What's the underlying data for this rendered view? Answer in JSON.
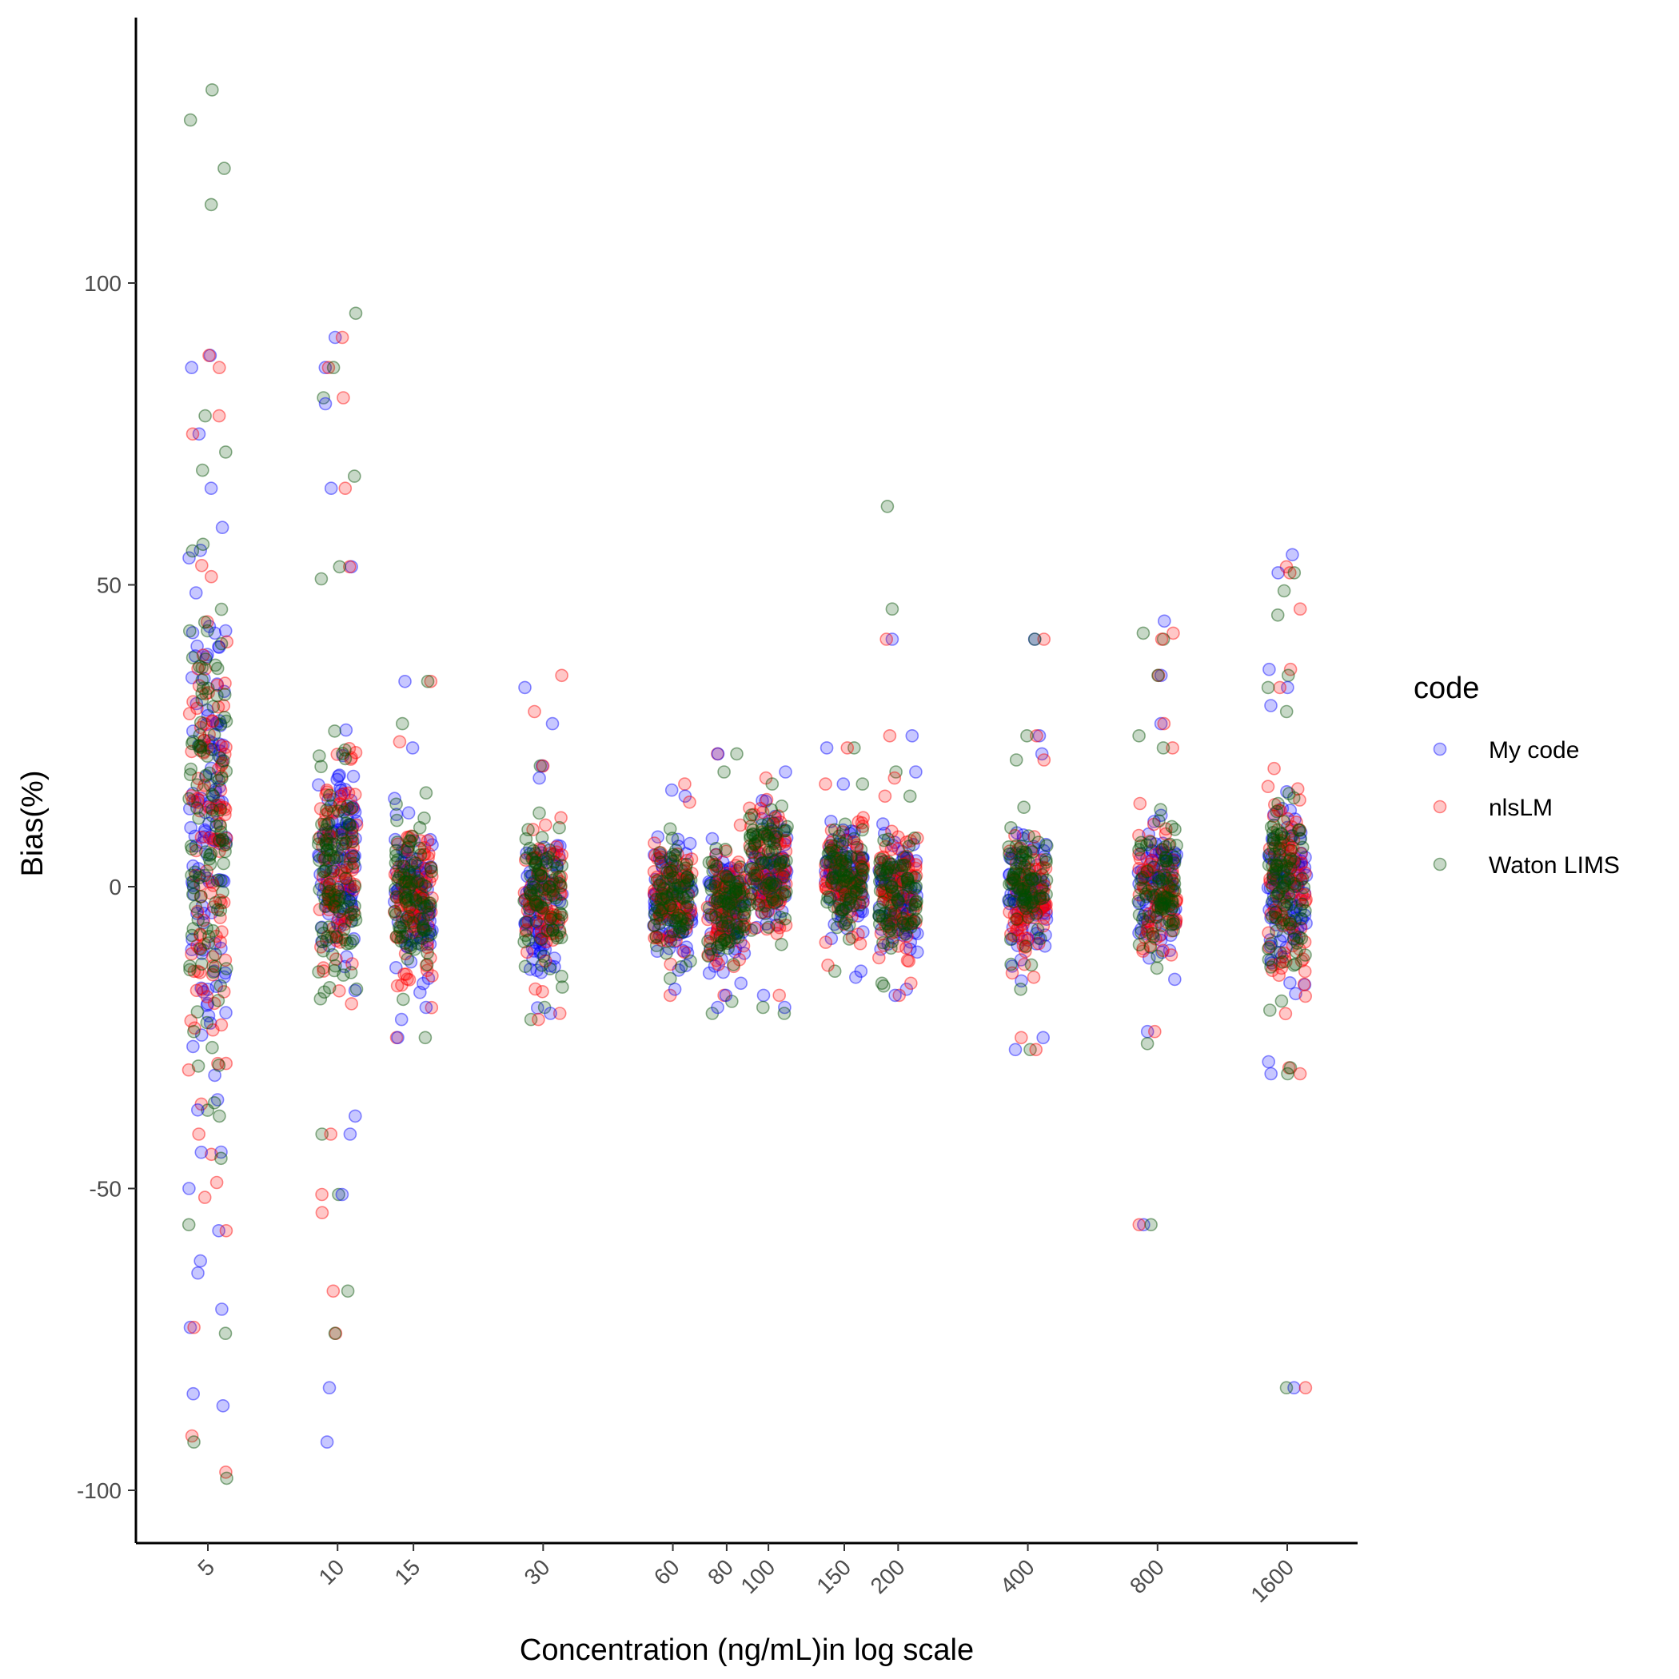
{
  "chart_data": {
    "type": "scatter",
    "xlabel": "Concentration (ng/mL)in log scale",
    "ylabel": "Bias(%)",
    "x_scale": "log",
    "x_ticks": [
      5,
      10,
      15,
      30,
      60,
      80,
      100,
      150,
      200,
      400,
      800,
      1600
    ],
    "x_tick_labels": [
      "5",
      "10",
      "15",
      "30",
      "60",
      "80",
      "100",
      "150",
      "200",
      "400",
      "800",
      "1600"
    ],
    "y_ticks": [
      -100,
      -50,
      0,
      50,
      100
    ],
    "y_tick_labels": [
      "-100",
      "-50",
      "0",
      "50",
      "100"
    ],
    "ylim": [
      -109,
      144
    ],
    "grid": false,
    "legend": {
      "title": "code",
      "position": "right"
    },
    "series": [
      {
        "name": "My code",
        "color": "#0000ff"
      },
      {
        "name": "nlsLM",
        "color": "#ff0000"
      },
      {
        "name": "Waton LIMS",
        "color": "#004d00"
      }
    ],
    "groups": [
      {
        "x": 5,
        "core_mean": 10,
        "core_sd": 30,
        "n": 110,
        "outliers": [
          {
            "s": 2,
            "y": 132
          },
          {
            "s": 2,
            "y": 127
          },
          {
            "s": 2,
            "y": 119
          },
          {
            "s": 2,
            "y": 113
          },
          {
            "s": 0,
            "y": 88
          },
          {
            "s": 1,
            "y": 88
          },
          {
            "s": 0,
            "y": 86
          },
          {
            "s": 1,
            "y": 86
          },
          {
            "s": 2,
            "y": 78
          },
          {
            "s": 1,
            "y": 78
          },
          {
            "s": 0,
            "y": 75
          },
          {
            "s": 1,
            "y": 75
          },
          {
            "s": 2,
            "y": 72
          },
          {
            "s": 0,
            "y": 66
          },
          {
            "s": 2,
            "y": 69
          },
          {
            "s": 0,
            "y": -57
          },
          {
            "s": 1,
            "y": -57
          },
          {
            "s": 2,
            "y": -56
          },
          {
            "s": 0,
            "y": -62
          },
          {
            "s": 0,
            "y": -64
          },
          {
            "s": 0,
            "y": -70
          },
          {
            "s": 0,
            "y": -73
          },
          {
            "s": 2,
            "y": -74
          },
          {
            "s": 1,
            "y": -73
          },
          {
            "s": 0,
            "y": -84
          },
          {
            "s": 0,
            "y": -86
          },
          {
            "s": 1,
            "y": -91
          },
          {
            "s": 2,
            "y": -92
          },
          {
            "s": 1,
            "y": -97
          },
          {
            "s": 2,
            "y": -98
          },
          {
            "s": 0,
            "y": -50
          },
          {
            "s": 1,
            "y": -49
          },
          {
            "s": 2,
            "y": -45
          },
          {
            "s": 0,
            "y": -44
          },
          {
            "s": 1,
            "y": -41
          },
          {
            "s": 2,
            "y": -38
          },
          {
            "s": 0,
            "y": -37
          }
        ]
      },
      {
        "x": 10,
        "core_mean": 3,
        "core_sd": 13,
        "n": 100,
        "outliers": [
          {
            "s": 2,
            "y": 95
          },
          {
            "s": 0,
            "y": 91
          },
          {
            "s": 1,
            "y": 91
          },
          {
            "s": 0,
            "y": 86
          },
          {
            "s": 1,
            "y": 86
          },
          {
            "s": 2,
            "y": 86
          },
          {
            "s": 2,
            "y": 81
          },
          {
            "s": 1,
            "y": 81
          },
          {
            "s": 0,
            "y": 80
          },
          {
            "s": 2,
            "y": 68
          },
          {
            "s": 1,
            "y": 66
          },
          {
            "s": 0,
            "y": 66
          },
          {
            "s": 0,
            "y": 53
          },
          {
            "s": 1,
            "y": 53
          },
          {
            "s": 2,
            "y": 53
          },
          {
            "s": 2,
            "y": 51
          },
          {
            "s": 1,
            "y": -51
          },
          {
            "s": 2,
            "y": -51
          },
          {
            "s": 0,
            "y": -51
          },
          {
            "s": 1,
            "y": -54
          },
          {
            "s": 1,
            "y": -67
          },
          {
            "s": 2,
            "y": -67
          },
          {
            "s": 1,
            "y": -74
          },
          {
            "s": 2,
            "y": -74
          },
          {
            "s": 0,
            "y": -83
          },
          {
            "s": 0,
            "y": -92
          },
          {
            "s": 0,
            "y": -41
          },
          {
            "s": 2,
            "y": -41
          },
          {
            "s": 1,
            "y": -41
          },
          {
            "s": 0,
            "y": -38
          }
        ]
      },
      {
        "x": 15,
        "core_mean": -2,
        "core_sd": 9,
        "n": 90,
        "outliers": [
          {
            "s": 1,
            "y": 34
          },
          {
            "s": 2,
            "y": 34
          },
          {
            "s": 0,
            "y": 34
          },
          {
            "s": 2,
            "y": 27
          },
          {
            "s": 1,
            "y": 24
          },
          {
            "s": 0,
            "y": 23
          },
          {
            "s": 0,
            "y": -20
          },
          {
            "s": 0,
            "y": -22
          },
          {
            "s": 1,
            "y": -25
          },
          {
            "s": 0,
            "y": -25
          },
          {
            "s": 2,
            "y": -25
          }
        ]
      },
      {
        "x": 30,
        "core_mean": -2,
        "core_sd": 8,
        "n": 80,
        "outliers": [
          {
            "s": 0,
            "y": 33
          },
          {
            "s": 1,
            "y": 35
          },
          {
            "s": 1,
            "y": 29
          },
          {
            "s": 0,
            "y": 27
          },
          {
            "s": 0,
            "y": 20
          },
          {
            "s": 2,
            "y": 20
          },
          {
            "s": 1,
            "y": 20
          },
          {
            "s": 0,
            "y": 18
          },
          {
            "s": 2,
            "y": -20
          },
          {
            "s": 1,
            "y": -21
          },
          {
            "s": 0,
            "y": -21
          },
          {
            "s": 2,
            "y": -22
          },
          {
            "s": 1,
            "y": -22
          }
        ]
      },
      {
        "x": 60,
        "core_mean": -2,
        "core_sd": 7,
        "n": 80,
        "outliers": [
          {
            "s": 1,
            "y": 17
          },
          {
            "s": 0,
            "y": 16
          },
          {
            "s": 0,
            "y": 15
          },
          {
            "s": 1,
            "y": 14
          },
          {
            "s": 1,
            "y": -18
          },
          {
            "s": 0,
            "y": -17
          }
        ]
      },
      {
        "x": 80,
        "core_mean": -3,
        "core_sd": 7,
        "n": 80,
        "outliers": [
          {
            "s": 1,
            "y": 22
          },
          {
            "s": 0,
            "y": 22
          },
          {
            "s": 2,
            "y": 22
          },
          {
            "s": 2,
            "y": 19
          },
          {
            "s": 0,
            "y": -16
          },
          {
            "s": 1,
            "y": -18
          },
          {
            "s": 2,
            "y": -21
          },
          {
            "s": 0,
            "y": -20
          },
          {
            "s": 2,
            "y": -19
          },
          {
            "s": 0,
            "y": -18
          }
        ]
      },
      {
        "x": 100,
        "core_mean": 3,
        "core_sd": 7,
        "n": 80,
        "outliers": [
          {
            "s": 0,
            "y": 19
          },
          {
            "s": 1,
            "y": 18
          },
          {
            "s": 2,
            "y": 17
          },
          {
            "s": 1,
            "y": -18
          },
          {
            "s": 0,
            "y": -18
          },
          {
            "s": 2,
            "y": -20
          },
          {
            "s": 0,
            "y": -20
          },
          {
            "s": 2,
            "y": -21
          }
        ]
      },
      {
        "x": 150,
        "core_mean": 2,
        "core_sd": 6,
        "n": 80,
        "outliers": [
          {
            "s": 2,
            "y": 23
          },
          {
            "s": 0,
            "y": 23
          },
          {
            "s": 1,
            "y": 23
          },
          {
            "s": 0,
            "y": 17
          },
          {
            "s": 2,
            "y": 17
          },
          {
            "s": 1,
            "y": 17
          },
          {
            "s": 2,
            "y": -14
          },
          {
            "s": 0,
            "y": -14
          },
          {
            "s": 1,
            "y": -13
          },
          {
            "s": 0,
            "y": -15
          }
        ]
      },
      {
        "x": 200,
        "core_mean": -1,
        "core_sd": 7,
        "n": 80,
        "outliers": [
          {
            "s": 2,
            "y": 63
          },
          {
            "s": 2,
            "y": 46
          },
          {
            "s": 0,
            "y": 41
          },
          {
            "s": 1,
            "y": 41
          },
          {
            "s": 1,
            "y": 25
          },
          {
            "s": 0,
            "y": 25
          },
          {
            "s": 0,
            "y": 19
          },
          {
            "s": 2,
            "y": 19
          },
          {
            "s": 1,
            "y": 18
          },
          {
            "s": 1,
            "y": 15
          },
          {
            "s": 2,
            "y": 15
          },
          {
            "s": 0,
            "y": -17
          },
          {
            "s": 1,
            "y": -18
          },
          {
            "s": 2,
            "y": -16
          },
          {
            "s": 1,
            "y": -16
          },
          {
            "s": 0,
            "y": -18
          }
        ]
      },
      {
        "x": 400,
        "core_mean": -1,
        "core_sd": 7,
        "n": 80,
        "outliers": [
          {
            "s": 0,
            "y": 41
          },
          {
            "s": 1,
            "y": 41
          },
          {
            "s": 2,
            "y": 41
          },
          {
            "s": 0,
            "y": 25
          },
          {
            "s": 1,
            "y": 25
          },
          {
            "s": 2,
            "y": 25
          },
          {
            "s": 0,
            "y": 22
          },
          {
            "s": 1,
            "y": 21
          },
          {
            "s": 2,
            "y": 21
          },
          {
            "s": 0,
            "y": -25
          },
          {
            "s": 1,
            "y": -25
          },
          {
            "s": 2,
            "y": -27
          },
          {
            "s": 0,
            "y": -27
          },
          {
            "s": 1,
            "y": -27
          },
          {
            "s": 2,
            "y": -17
          },
          {
            "s": 1,
            "y": -15
          }
        ]
      },
      {
        "x": 800,
        "core_mean": 0,
        "core_sd": 8,
        "n": 80,
        "outliers": [
          {
            "s": 0,
            "y": 44
          },
          {
            "s": 2,
            "y": 42
          },
          {
            "s": 1,
            "y": 42
          },
          {
            "s": 2,
            "y": 41
          },
          {
            "s": 1,
            "y": 41
          },
          {
            "s": 0,
            "y": 35
          },
          {
            "s": 1,
            "y": 35
          },
          {
            "s": 2,
            "y": 35
          },
          {
            "s": 0,
            "y": 27
          },
          {
            "s": 1,
            "y": 27
          },
          {
            "s": 2,
            "y": 25
          },
          {
            "s": 1,
            "y": 23
          },
          {
            "s": 2,
            "y": 23
          },
          {
            "s": 0,
            "y": -24
          },
          {
            "s": 1,
            "y": -24
          },
          {
            "s": 2,
            "y": -26
          },
          {
            "s": 0,
            "y": -56
          },
          {
            "s": 1,
            "y": -56
          },
          {
            "s": 2,
            "y": -56
          }
        ]
      },
      {
        "x": 1600,
        "core_mean": 0,
        "core_sd": 11,
        "n": 95,
        "outliers": [
          {
            "s": 0,
            "y": 55
          },
          {
            "s": 1,
            "y": 53
          },
          {
            "s": 0,
            "y": 52
          },
          {
            "s": 1,
            "y": 52
          },
          {
            "s": 2,
            "y": 52
          },
          {
            "s": 2,
            "y": 49
          },
          {
            "s": 2,
            "y": 45
          },
          {
            "s": 1,
            "y": 46
          },
          {
            "s": 0,
            "y": 36
          },
          {
            "s": 1,
            "y": 36
          },
          {
            "s": 2,
            "y": 35
          },
          {
            "s": 0,
            "y": 33
          },
          {
            "s": 1,
            "y": 33
          },
          {
            "s": 2,
            "y": 33
          },
          {
            "s": 0,
            "y": 30
          },
          {
            "s": 2,
            "y": 29
          },
          {
            "s": 0,
            "y": -29
          },
          {
            "s": 1,
            "y": -30
          },
          {
            "s": 2,
            "y": -30
          },
          {
            "s": 0,
            "y": -31
          },
          {
            "s": 1,
            "y": -31
          },
          {
            "s": 2,
            "y": -31
          },
          {
            "s": 0,
            "y": -83
          },
          {
            "s": 1,
            "y": -83
          },
          {
            "s": 2,
            "y": -83
          }
        ]
      }
    ]
  }
}
